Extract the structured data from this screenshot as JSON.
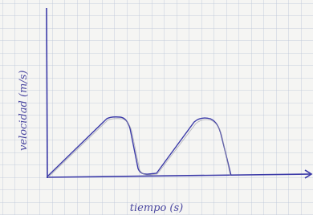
{
  "axes": {
    "y_label": "velocidad (m/s)",
    "x_label": "tiempo (s)"
  }
}
